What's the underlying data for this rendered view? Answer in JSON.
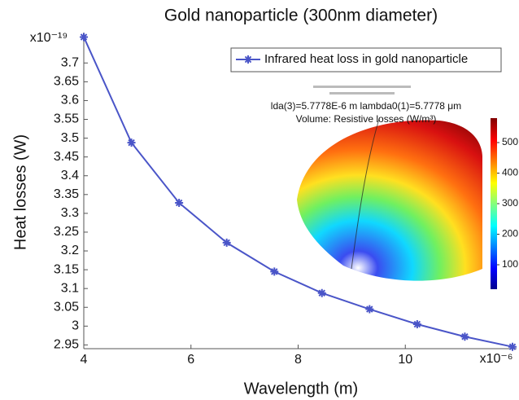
{
  "chart_data": {
    "type": "line",
    "title": "Gold nanoparticle (300nm diameter)",
    "x_label": "Wavelength (m)",
    "y_label": "Heat losses (W)",
    "x_multiplier": "x10⁻⁶",
    "y_multiplier": "x10⁻¹⁹",
    "x": [
      4,
      4.889,
      5.778,
      6.667,
      7.556,
      8.444,
      9.333,
      10.222,
      11.111,
      12
    ],
    "series": [
      {
        "name": "Infrared heat loss in gold nanoparticle",
        "color": "#4a55c8",
        "values": [
          3.769,
          3.488,
          3.328,
          3.222,
          3.145,
          3.088,
          3.045,
          3.005,
          2.972,
          2.945
        ]
      }
    ],
    "xlim": [
      4,
      12
    ],
    "ylim": [
      2.94,
      3.77
    ],
    "xticks": [
      4,
      6,
      8,
      10
    ],
    "yticks": [
      2.95,
      3,
      3.05,
      3.1,
      3.15,
      3.2,
      3.25,
      3.3,
      3.35,
      3.4,
      3.45,
      3.5,
      3.55,
      3.6,
      3.65,
      3.7
    ],
    "legend": "upper right",
    "inset": {
      "annotations": [
        "lda(3)=5.7778E-6 m lambda0(1)=5.7778 μm",
        "Volume: Resistive losses (W/m³)"
      ],
      "colorbar": {
        "lim": [
          20,
          580
        ],
        "ticks": [
          100,
          200,
          300,
          400,
          500
        ]
      }
    }
  }
}
